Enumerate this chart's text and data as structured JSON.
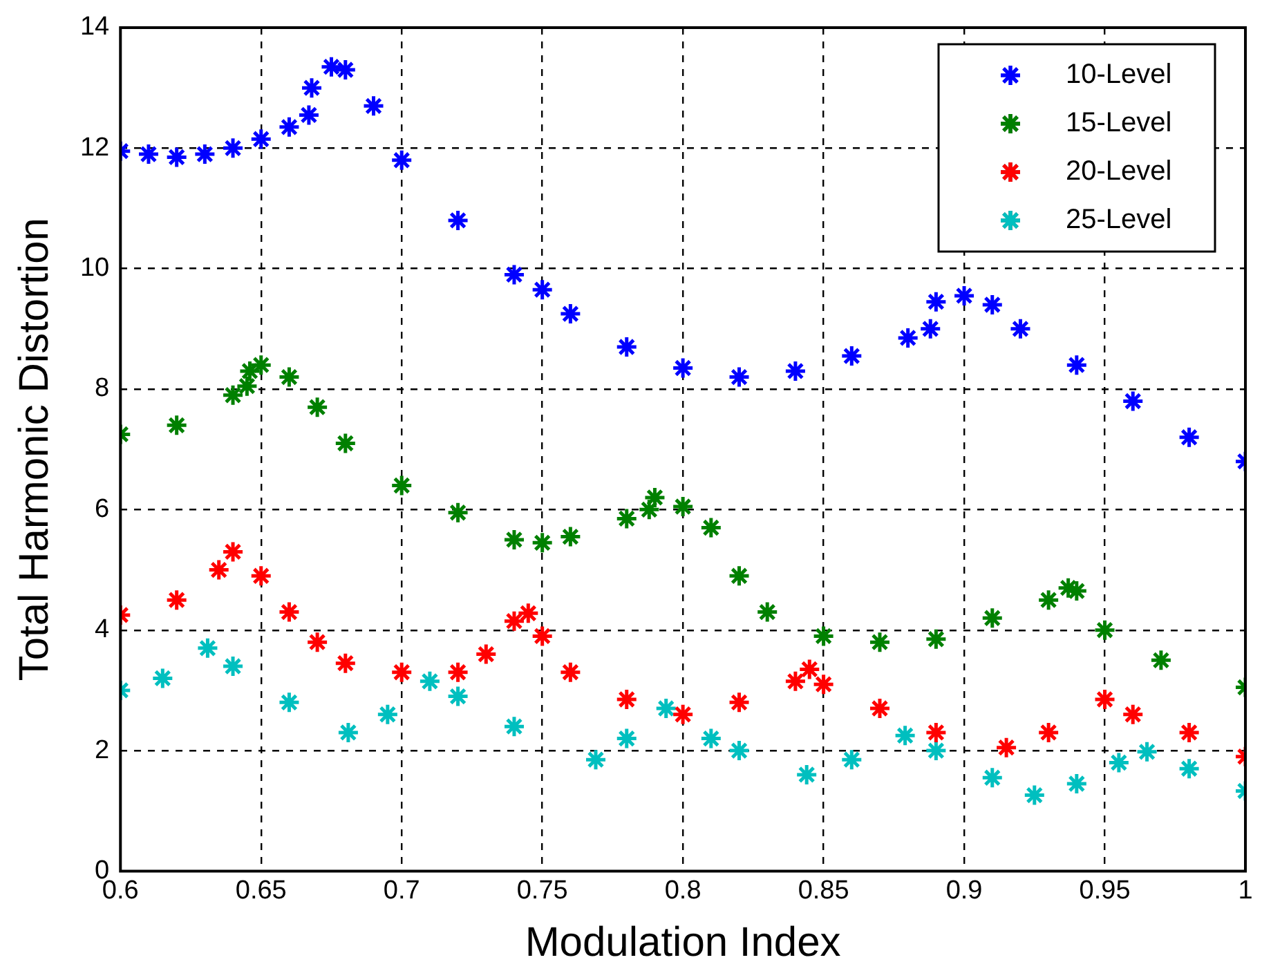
{
  "chart_data": {
    "type": "scatter",
    "xlabel": "Modulation Index",
    "ylabel": "Total Harmonic Distortion",
    "xlim": [
      0.6,
      1
    ],
    "xticks": [
      0.6,
      0.65,
      0.7,
      0.75,
      0.8,
      0.85,
      0.9,
      0.95,
      1
    ],
    "ylim": [
      0,
      14
    ],
    "yticks": [
      0,
      2,
      4,
      6,
      8,
      10,
      12,
      14
    ],
    "grid": true,
    "legend": "top right",
    "marker": "cross",
    "series": [
      {
        "name": "10-Level",
        "color": "#0000ff",
        "x": [
          0.6,
          0.61,
          0.62,
          0.63,
          0.64,
          0.65,
          0.66,
          0.667,
          0.668,
          0.675,
          0.68,
          0.69,
          0.7,
          0.72,
          0.74,
          0.75,
          0.76,
          0.78,
          0.8,
          0.82,
          0.84,
          0.86,
          0.88,
          0.888,
          0.89,
          0.9,
          0.91,
          0.92,
          0.94,
          0.96,
          0.98,
          1
        ],
        "values": [
          11.95,
          11.9,
          11.85,
          11.9,
          12.0,
          12.15,
          12.35,
          12.55,
          13.0,
          13.35,
          13.3,
          12.7,
          11.8,
          10.8,
          9.9,
          9.65,
          9.25,
          8.7,
          8.35,
          8.2,
          8.3,
          8.55,
          8.85,
          9.0,
          9.45,
          9.55,
          9.4,
          9.0,
          8.4,
          7.8,
          7.2,
          6.8
        ]
      },
      {
        "name": "15-Level",
        "color": "#008000",
        "x": [
          0.6,
          0.62,
          0.64,
          0.645,
          0.646,
          0.65,
          0.66,
          0.67,
          0.68,
          0.7,
          0.72,
          0.74,
          0.75,
          0.76,
          0.78,
          0.788,
          0.79,
          0.8,
          0.81,
          0.82,
          0.83,
          0.85,
          0.87,
          0.89,
          0.91,
          0.93,
          0.937,
          0.94,
          0.95,
          0.97,
          1
        ],
        "values": [
          7.25,
          7.4,
          7.9,
          8.05,
          8.3,
          8.4,
          8.2,
          7.7,
          7.1,
          6.4,
          5.95,
          5.5,
          5.45,
          5.55,
          5.85,
          6.0,
          6.2,
          6.05,
          5.7,
          4.9,
          4.3,
          3.9,
          3.8,
          3.85,
          4.2,
          4.5,
          4.7,
          4.65,
          4.0,
          3.5,
          3.05
        ]
      },
      {
        "name": "20-Level",
        "color": "#ff0000",
        "x": [
          0.6,
          0.62,
          0.635,
          0.64,
          0.65,
          0.66,
          0.67,
          0.68,
          0.7,
          0.72,
          0.73,
          0.74,
          0.745,
          0.75,
          0.76,
          0.78,
          0.8,
          0.82,
          0.84,
          0.845,
          0.85,
          0.87,
          0.89,
          0.915,
          0.93,
          0.95,
          0.96,
          0.98,
          1
        ],
        "values": [
          4.25,
          4.5,
          5.0,
          5.3,
          4.9,
          4.3,
          3.8,
          3.45,
          3.3,
          3.3,
          3.6,
          4.15,
          4.28,
          3.9,
          3.3,
          2.85,
          2.6,
          2.8,
          3.15,
          3.35,
          3.1,
          2.7,
          2.3,
          2.05,
          2.3,
          2.85,
          2.6,
          2.3,
          1.9
        ]
      },
      {
        "name": "25-Level",
        "color": "#00bfbf",
        "x": [
          0.6,
          0.615,
          0.631,
          0.64,
          0.66,
          0.681,
          0.695,
          0.71,
          0.72,
          0.74,
          0.769,
          0.78,
          0.794,
          0.81,
          0.82,
          0.844,
          0.86,
          0.879,
          0.89,
          0.91,
          0.925,
          0.94,
          0.955,
          0.965,
          0.98,
          1
        ],
        "values": [
          3.0,
          3.2,
          3.7,
          3.4,
          2.8,
          2.3,
          2.6,
          3.15,
          2.9,
          2.4,
          1.85,
          2.2,
          2.7,
          2.2,
          2.0,
          1.6,
          1.85,
          2.25,
          2.0,
          1.55,
          1.26,
          1.45,
          1.8,
          1.98,
          1.7,
          1.33
        ]
      }
    ]
  }
}
